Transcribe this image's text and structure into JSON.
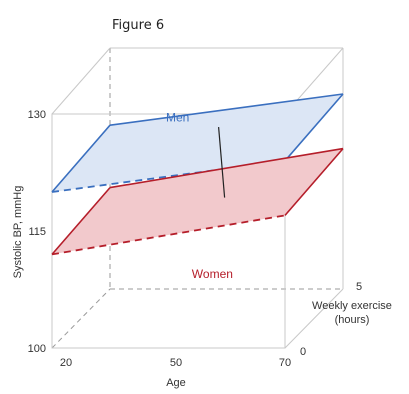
{
  "figure_label": "Figure 6",
  "chart_data": {
    "type": "3d-surface-planes",
    "title": "",
    "xlabel": "Age",
    "ylabel": "Systolic BP, mmHg",
    "zlabel_lines": [
      "Weekly exercise",
      "(hours)"
    ],
    "xlim": [
      20,
      70
    ],
    "ylim": [
      100,
      130
    ],
    "zlim": [
      0,
      5
    ],
    "x_ticks": [
      "20",
      "50",
      "70"
    ],
    "y_ticks": [
      "100",
      "115",
      "130"
    ],
    "z_ticks": [
      "0",
      "5"
    ],
    "series": [
      {
        "name": "Men",
        "color": "#3a6fbf",
        "fill": "#dce6f5",
        "points": [
          {
            "age": 20,
            "exercise": 0,
            "bp": 120
          },
          {
            "age": 70,
            "exercise": 0,
            "bp": 124
          },
          {
            "age": 70,
            "exercise": 5,
            "bp": 125
          },
          {
            "age": 20,
            "exercise": 5,
            "bp": 121
          }
        ]
      },
      {
        "name": "Women",
        "color": "#b51e2a",
        "fill": "#f2c9cc",
        "points": [
          {
            "age": 20,
            "exercise": 0,
            "bp": 112
          },
          {
            "age": 70,
            "exercise": 0,
            "bp": 117
          },
          {
            "age": 70,
            "exercise": 5,
            "bp": 118
          },
          {
            "age": 20,
            "exercise": 5,
            "bp": 113
          }
        ]
      }
    ],
    "grid": false,
    "legend": "inline labels"
  }
}
